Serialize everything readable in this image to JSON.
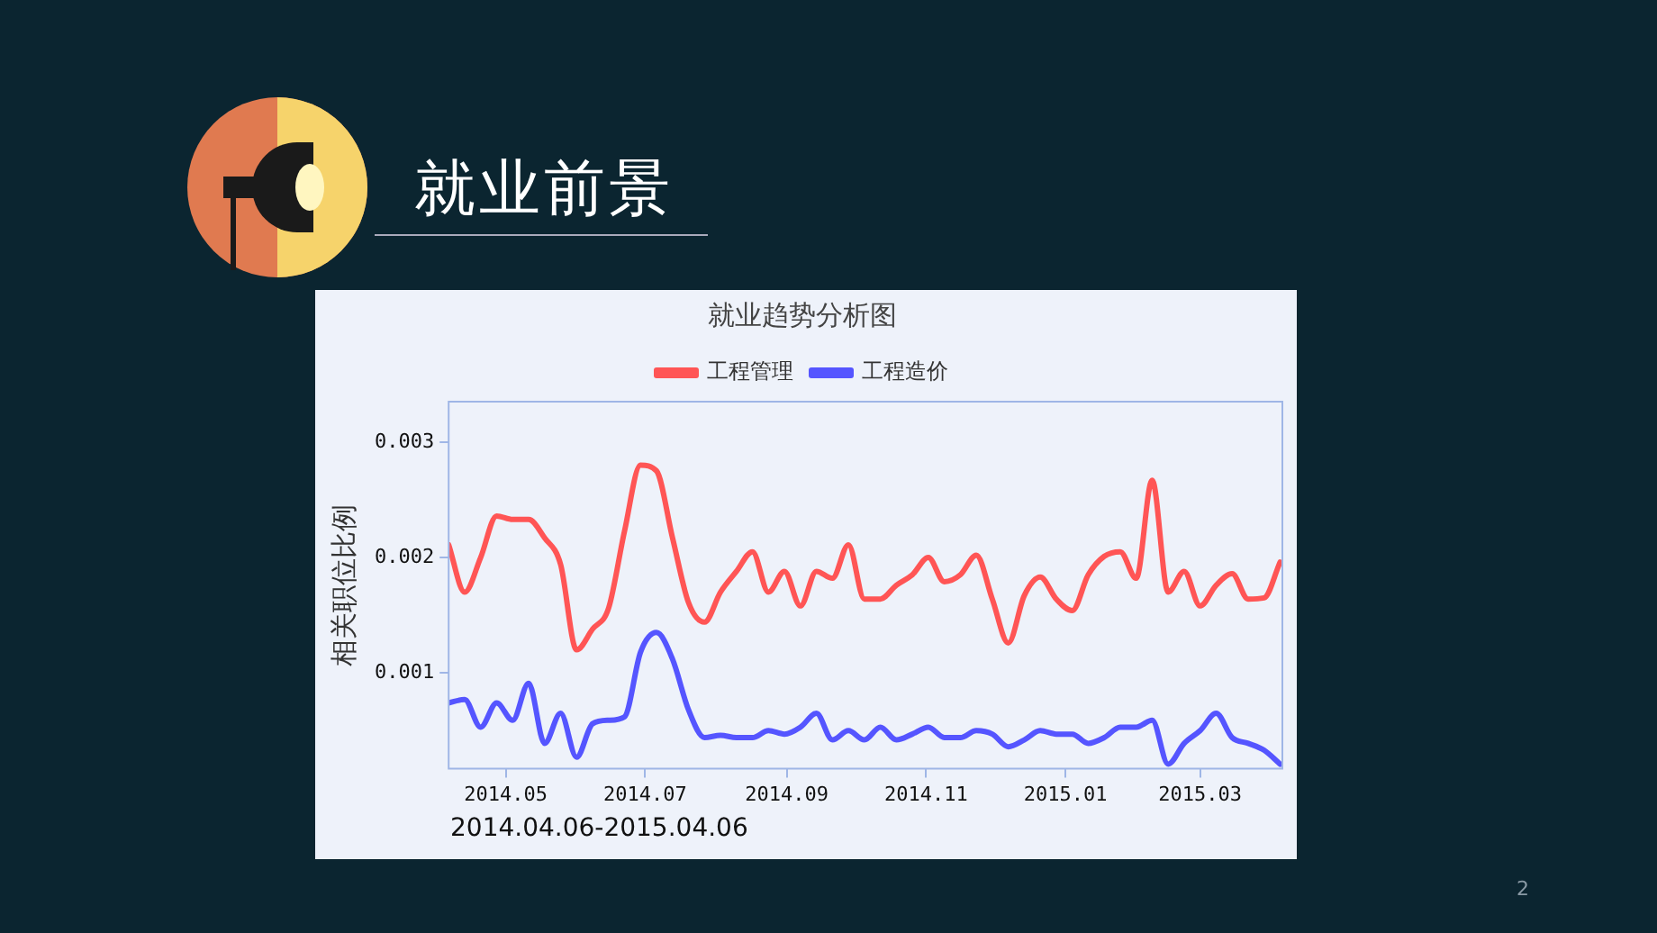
{
  "chart_data": {
    "type": "line",
    "title": "就业趋势分析图",
    "ylabel": "相关职位比例",
    "annotations": [
      "就业前景",
      "2014.04.06-2015.04.06",
      "2"
    ],
    "x": [
      "2014-04-06",
      "2014-04-13",
      "2014-04-20",
      "2014-04-27",
      "2014-05-04",
      "2014-05-11",
      "2014-05-18",
      "2014-05-25",
      "2014-06-01",
      "2014-06-08",
      "2014-06-15",
      "2014-06-22",
      "2014-06-29",
      "2014-07-06",
      "2014-07-13",
      "2014-07-20",
      "2014-07-27",
      "2014-08-03",
      "2014-08-10",
      "2014-08-17",
      "2014-08-24",
      "2014-08-31",
      "2014-09-07",
      "2014-09-14",
      "2014-09-21",
      "2014-09-28",
      "2014-10-05",
      "2014-10-12",
      "2014-10-19",
      "2014-10-26",
      "2014-11-02",
      "2014-11-09",
      "2014-11-16",
      "2014-11-23",
      "2014-11-30",
      "2014-12-07",
      "2014-12-14",
      "2014-12-21",
      "2014-12-28",
      "2015-01-04",
      "2015-01-11",
      "2015-01-18",
      "2015-01-25",
      "2015-02-01",
      "2015-02-08",
      "2015-02-15",
      "2015-02-22",
      "2015-03-01",
      "2015-03-08",
      "2015-03-15",
      "2015-03-22",
      "2015-03-29",
      "2015-04-05"
    ],
    "series": [
      {
        "name": "工程管理",
        "color": "#ff5555",
        "values": [
          0.00211,
          0.0017,
          0.002,
          0.00236,
          0.00233,
          0.00233,
          0.00217,
          0.00194,
          0.0012,
          0.00138,
          0.00156,
          0.00223,
          0.0028,
          0.00275,
          0.00217,
          0.00161,
          0.00144,
          0.0017,
          0.00188,
          0.00205,
          0.0017,
          0.00188,
          0.00158,
          0.00188,
          0.00182,
          0.00211,
          0.00164,
          0.00164,
          0.00176,
          0.00185,
          0.002,
          0.00179,
          0.00185,
          0.00202,
          0.00164,
          0.00126,
          0.00167,
          0.00183,
          0.00164,
          0.00154,
          0.00185,
          0.00201,
          0.00205,
          0.00182,
          0.00267,
          0.0017,
          0.00188,
          0.00158,
          0.00176,
          0.00186,
          0.00164,
          0.00165,
          0.00196
        ]
      },
      {
        "name": "工程造价",
        "color": "#5555ff",
        "values": [
          0.00074,
          0.00077,
          0.00053,
          0.00074,
          0.00059,
          0.00091,
          0.00039,
          0.00065,
          0.00027,
          0.00056,
          0.00059,
          0.00062,
          0.00118,
          0.00135,
          0.00112,
          0.00068,
          0.00044,
          0.00046,
          0.00044,
          0.00044,
          0.0005,
          0.00047,
          0.00053,
          0.00065,
          0.00042,
          0.0005,
          0.00042,
          0.00053,
          0.00042,
          0.00047,
          0.00053,
          0.00044,
          0.00044,
          0.0005,
          0.00047,
          0.00036,
          0.00042,
          0.0005,
          0.00047,
          0.00047,
          0.00039,
          0.00044,
          0.00053,
          0.00053,
          0.00059,
          0.00021,
          0.00039,
          0.0005,
          0.00065,
          0.00044,
          0.00039,
          0.00033,
          0.00021
        ]
      }
    ],
    "xlim": [
      "2014-04-06",
      "2015-04-06"
    ],
    "xticks": [
      {
        "value": "2014-05-01",
        "label": "2014.05"
      },
      {
        "value": "2014-07-01",
        "label": "2014.07"
      },
      {
        "value": "2014-09-01",
        "label": "2014.09"
      },
      {
        "value": "2014-11-01",
        "label": "2014.11"
      },
      {
        "value": "2015-01-01",
        "label": "2015.01"
      },
      {
        "value": "2015-03-01",
        "label": "2015.03"
      }
    ],
    "ylim": [
      0.00017,
      0.00335
    ],
    "yticks": [
      0.001,
      0.002,
      0.003
    ],
    "legend": "top",
    "grid": false,
    "marker": "none",
    "line_style": "solid"
  }
}
